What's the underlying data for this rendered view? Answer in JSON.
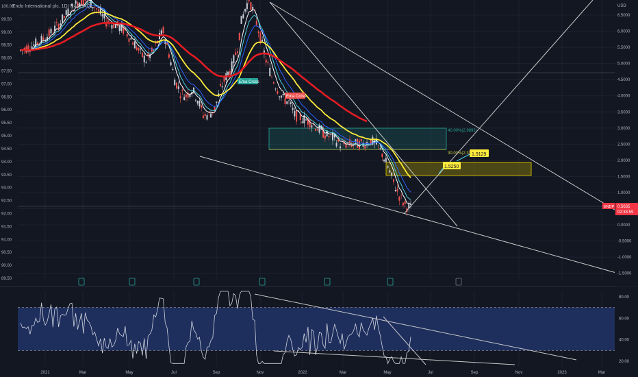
{
  "header": {
    "symbol_title": "Endo International plc, 1D, NASDAQ"
  },
  "colors": {
    "background": "#131722",
    "grid": "#1e2230",
    "axis_text": "#b2b5be",
    "candle_up": "#c8cdd6",
    "candle_down": "#ef5350",
    "ema_fast": "#ffffff",
    "ema_cyan": "#4dd0e1",
    "ema_blue": "#2962ff",
    "ema_yellow": "#ffeb3b",
    "ema_red": "#e51c23",
    "trendline": "#c8c8c8",
    "fib_upper": "#26a69a",
    "fib_lower": "#c9cc3f",
    "highlight_box": "#c8b400",
    "rsi_band": "#1e2f5e",
    "rsi_line": "#d1d4dc",
    "badge_red": "#f23645"
  },
  "chart_data": {
    "type": "line",
    "instrument": "ENDP",
    "x_tick_labels": [
      "2021",
      "Mar",
      "May",
      "Jul",
      "Sep",
      "Nov",
      "2022",
      "Mar",
      "May",
      "Jul",
      "Sep",
      "Nov",
      "2023",
      "Mar"
    ],
    "left_axis": {
      "ticks": [
        "100.00",
        "99.50",
        "99.00",
        "98.50",
        "98.00",
        "97.50",
        "97.00",
        "96.50",
        "96.00",
        "95.50",
        "95.00",
        "94.50",
        "94.00",
        "93.50",
        "93.00",
        "92.50",
        "92.00",
        "91.50",
        "91.00",
        "90.50",
        "90.00",
        "89.50"
      ],
      "ylim": [
        89.5,
        100.0
      ]
    },
    "right_axis": {
      "title": "USD",
      "ticks": [
        "6.5000",
        "6.0000",
        "5.5000",
        "5.0000",
        "4.5000",
        "4.0000",
        "3.5000",
        "3.0000",
        "2.5000",
        "2.0000",
        "1.5000",
        "1.0000",
        "0.5000",
        "0.0000",
        "-0.5000",
        "-1.0000",
        "-1.5000"
      ],
      "ylim": [
        -1.5,
        6.5
      ]
    },
    "series": [
      {
        "name": "ENDP",
        "values": [
          [
            0,
            5.4
          ],
          [
            8,
            5.6
          ],
          [
            15,
            5.9
          ],
          [
            20,
            6.2
          ],
          [
            25,
            6.6
          ],
          [
            30,
            6.9
          ],
          [
            35,
            7.0
          ],
          [
            40,
            6.7
          ],
          [
            45,
            6.3
          ],
          [
            50,
            6.2
          ],
          [
            55,
            6.0
          ],
          [
            60,
            5.6
          ],
          [
            63,
            5.3
          ],
          [
            66,
            5.1
          ],
          [
            70,
            5.4
          ],
          [
            73,
            5.8
          ],
          [
            75,
            6.0
          ],
          [
            78,
            5.3
          ],
          [
            81,
            4.5
          ],
          [
            84,
            4.1
          ],
          [
            87,
            4.0
          ],
          [
            90,
            4.2
          ],
          [
            93,
            3.9
          ],
          [
            96,
            3.4
          ],
          [
            99,
            3.4
          ],
          [
            102,
            3.6
          ],
          [
            105,
            4.2
          ],
          [
            108,
            4.6
          ],
          [
            111,
            4.9
          ],
          [
            114,
            5.5
          ],
          [
            116,
            6.3
          ],
          [
            118,
            6.7
          ],
          [
            120,
            7.0
          ],
          [
            123,
            6.5
          ],
          [
            126,
            5.8
          ],
          [
            129,
            5.1
          ],
          [
            132,
            4.6
          ],
          [
            135,
            4.2
          ],
          [
            138,
            3.9
          ],
          [
            141,
            3.8
          ],
          [
            144,
            3.4
          ],
          [
            148,
            3.3
          ],
          [
            152,
            3.2
          ],
          [
            156,
            3.0
          ],
          [
            160,
            2.8
          ],
          [
            164,
            2.7
          ],
          [
            168,
            2.5
          ],
          [
            172,
            2.5
          ],
          [
            176,
            2.5
          ],
          [
            180,
            2.5
          ],
          [
            184,
            2.6
          ],
          [
            187,
            2.5
          ],
          [
            190,
            2.2
          ],
          [
            193,
            1.8
          ],
          [
            196,
            1.3
          ],
          [
            199,
            0.9
          ],
          [
            202,
            0.6
          ],
          [
            205,
            0.5
          ]
        ]
      }
    ],
    "indicators": [
      "Ema Cross",
      "Ema Cross"
    ],
    "fib_levels": [
      {
        "label": "40.00%(2.9892)",
        "value": 2.9892
      },
      {
        "label": "30.00%(2.31...)",
        "value": 2.31
      }
    ],
    "callouts": [
      "1.9129",
      "1.5250"
    ],
    "current_price": {
      "label": "ENDP",
      "value": "0.5635",
      "countdown": "02:33:59"
    },
    "rsi": {
      "ticks": [
        "80.00",
        "60.00",
        "40.00",
        "20.00"
      ],
      "ylim": [
        15,
        85
      ],
      "band": [
        30,
        70
      ]
    }
  }
}
